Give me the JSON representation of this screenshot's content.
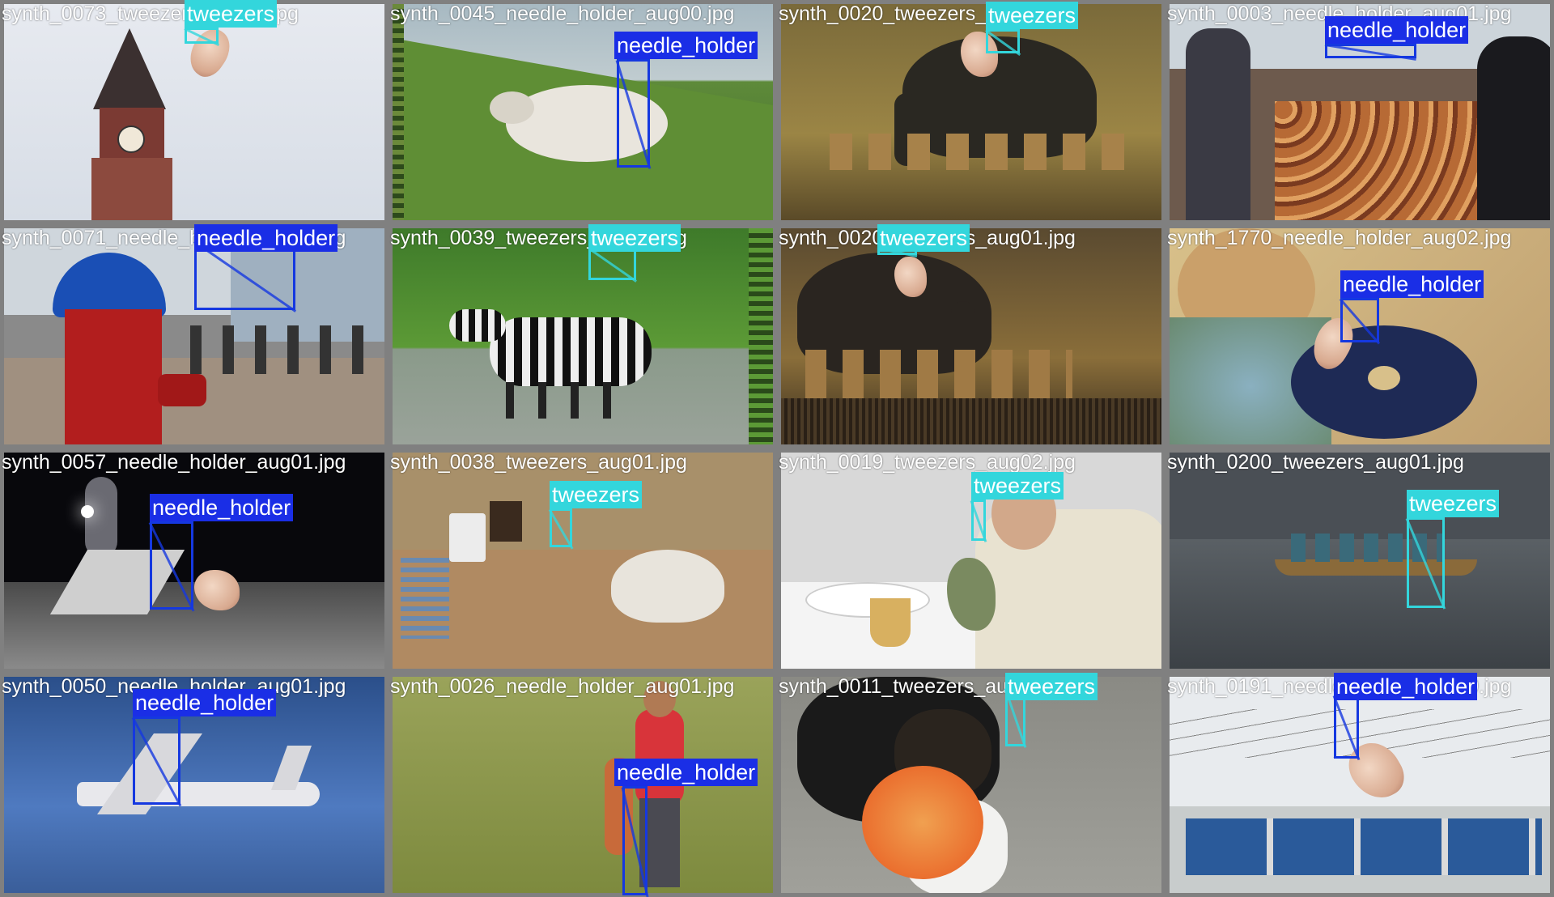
{
  "classes": {
    "tweezers": {
      "label": "tweezers",
      "box_color": "#33d6dc",
      "label_bg": "#33d6dc",
      "label_text": "#ffffff"
    },
    "needle_holder": {
      "label": "needle_holder",
      "box_color": "#1538e0",
      "label_bg": "#1a2ee6",
      "label_text": "#ffffff"
    }
  },
  "tiles": [
    {
      "filename": "synth_0073_tweezers_aug02.jpg",
      "scene": "tower",
      "detections": [
        {
          "class": "tweezers",
          "label": "tweezers"
        }
      ]
    },
    {
      "filename": "synth_0045_needle_holder_aug00.jpg",
      "scene": "sheep",
      "detections": [
        {
          "class": "needle_holder",
          "label": "needle_holder"
        }
      ]
    },
    {
      "filename": "synth_0020_tweezers_aug02.jpg",
      "scene": "elephant",
      "detections": [
        {
          "class": "tweezers",
          "label": "tweezers"
        }
      ]
    },
    {
      "filename": "synth_0003_needle_holder_aug01.jpg",
      "scene": "market",
      "detections": [
        {
          "class": "needle_holder",
          "label": "needle_holder"
        }
      ]
    },
    {
      "filename": "synth_0071_needle_holder_aug02.jpg",
      "scene": "hydrant",
      "detections": [
        {
          "class": "needle_holder",
          "label": "needle_holder"
        }
      ]
    },
    {
      "filename": "synth_0039_tweezers_aug01.jpg",
      "scene": "zebra",
      "detections": [
        {
          "class": "tweezers",
          "label": "tweezers"
        }
      ]
    },
    {
      "filename": "synth_0020_tweezers_aug01.jpg",
      "scene": "elephant2",
      "detections": [
        {
          "class": "tweezers",
          "label": "tweezers"
        }
      ]
    },
    {
      "filename": "synth_1770_needle_holder_aug02.jpg",
      "scene": "donut",
      "detections": [
        {
          "class": "needle_holder",
          "label": "needle_holder"
        }
      ]
    },
    {
      "filename": "synth_0057_needle_holder_aug01.jpg",
      "scene": "skate",
      "detections": [
        {
          "class": "needle_holder",
          "label": "needle_holder"
        }
      ]
    },
    {
      "filename": "synth_0038_tweezers_aug01.jpg",
      "scene": "bathroom",
      "detections": [
        {
          "class": "tweezers",
          "label": "tweezers"
        }
      ]
    },
    {
      "filename": "synth_0019_tweezers_aug02.jpg",
      "scene": "diner",
      "detections": [
        {
          "class": "tweezers",
          "label": "tweezers"
        }
      ]
    },
    {
      "filename": "synth_0200_tweezers_aug01.jpg",
      "scene": "boat",
      "detections": [
        {
          "class": "tweezers",
          "label": "tweezers"
        }
      ]
    },
    {
      "filename": "synth_0050_needle_holder_aug01.jpg",
      "scene": "plane",
      "detections": [
        {
          "class": "needle_holder",
          "label": "needle_holder"
        }
      ]
    },
    {
      "filename": "synth_0026_needle_holder_aug01.jpg",
      "scene": "field",
      "detections": [
        {
          "class": "needle_holder",
          "label": "needle_holder"
        }
      ]
    },
    {
      "filename": "synth_0011_tweezers_aug01.jpg",
      "scene": "dog",
      "detections": [
        {
          "class": "tweezers",
          "label": "tweezers"
        }
      ]
    },
    {
      "filename": "synth_0191_needle_holder_aug00.jpg",
      "scene": "buses",
      "detections": [
        {
          "class": "needle_holder",
          "label": "needle_holder"
        }
      ]
    }
  ]
}
